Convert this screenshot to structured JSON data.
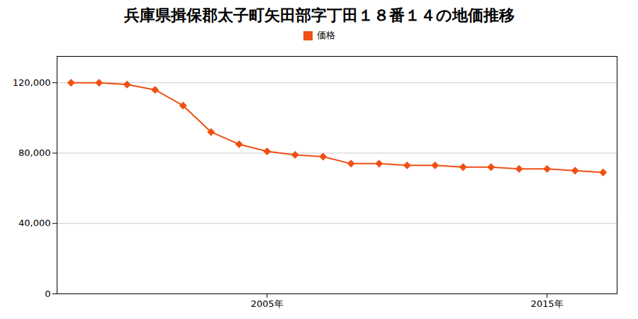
{
  "chart_data": {
    "type": "line",
    "title": "兵庫県揖保郡太子町矢田部字丁田１８番１４の地価推移",
    "x": [
      1998,
      1999,
      2000,
      2001,
      2002,
      2003,
      2004,
      2005,
      2006,
      2007,
      2008,
      2009,
      2010,
      2011,
      2012,
      2013,
      2014,
      2015,
      2016,
      2017
    ],
    "series": [
      {
        "name": "価格",
        "color": "#f05014",
        "marker": "diamond",
        "values": [
          120000,
          120000,
          119000,
          116000,
          107000,
          92000,
          85000,
          81000,
          79000,
          78000,
          74000,
          74000,
          73000,
          73000,
          72000,
          72000,
          71000,
          71000,
          70000,
          69000
        ]
      }
    ],
    "xlim": [
      1997.5,
      2017.5
    ],
    "xticks": [
      {
        "value": 2005,
        "label": "2005年"
      },
      {
        "value": 2015,
        "label": "2015年"
      }
    ],
    "ylim": [
      0,
      135000
    ],
    "yticks": [
      0,
      {
        "value": 40000,
        "label": "40,000"
      },
      {
        "value": 80000,
        "label": "80,000"
      },
      {
        "value": 120000,
        "label": "120,000"
      }
    ],
    "grid": true,
    "legend": "top"
  }
}
